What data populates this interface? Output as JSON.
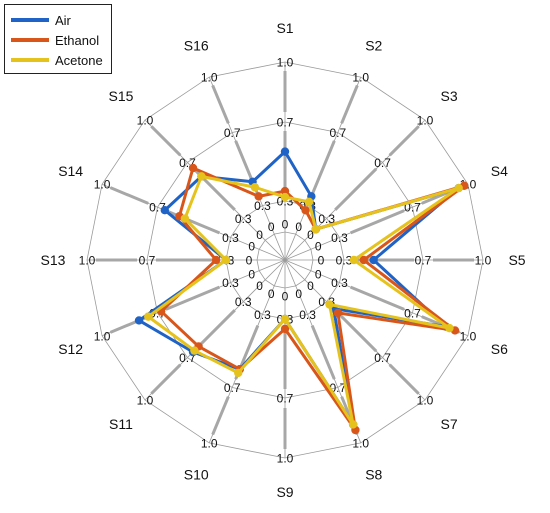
{
  "chart_data": {
    "type": "radar",
    "title": "",
    "categories": [
      "S1",
      "S2",
      "S3",
      "S4",
      "S5",
      "S6",
      "S7",
      "S8",
      "S9",
      "S10",
      "S11",
      "S12",
      "S13",
      "S14",
      "S15",
      "S16"
    ],
    "rings": [
      0,
      0.3,
      0.7,
      1.0
    ],
    "ring_labels": [
      "0",
      "0.3",
      "0.7",
      "1.0"
    ],
    "legend_position": "top-left",
    "series": [
      {
        "name": "Air",
        "color": "#1f63c6",
        "values": [
          0.55,
          0.35,
          0.15,
          0.95,
          0.45,
          0.88,
          0.35,
          0.9,
          0.3,
          0.6,
          0.66,
          0.8,
          0.3,
          0.66,
          0.6,
          0.43
        ]
      },
      {
        "name": "Ethanol",
        "color": "#d9561b",
        "values": [
          0.35,
          0.25,
          0.15,
          0.98,
          0.4,
          0.93,
          0.38,
          0.93,
          0.35,
          0.6,
          0.62,
          0.68,
          0.35,
          0.58,
          0.66,
          0.35
        ]
      },
      {
        "name": "Acetone",
        "color": "#e6c21c",
        "values": [
          0.32,
          0.32,
          0.15,
          0.95,
          0.35,
          0.9,
          0.32,
          0.9,
          0.3,
          0.62,
          0.65,
          0.75,
          0.3,
          0.55,
          0.6,
          0.4
        ]
      }
    ]
  }
}
